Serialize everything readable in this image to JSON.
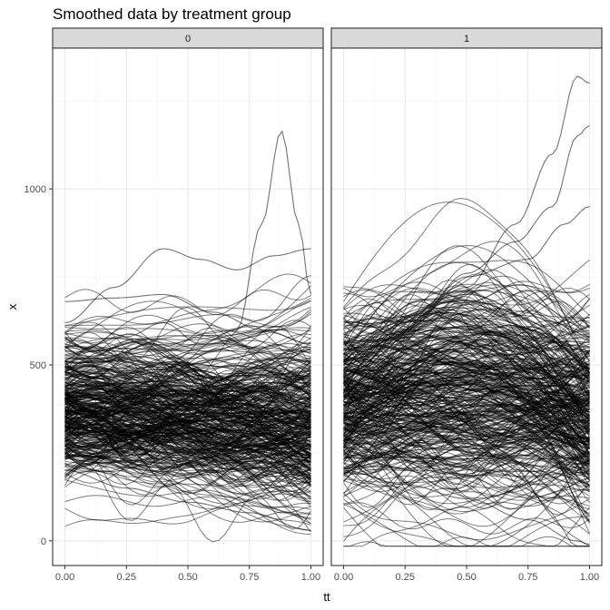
{
  "chart_data": {
    "type": "line",
    "title": "Smoothed data by treatment group",
    "xlabel": "tt",
    "ylabel": "x",
    "xlim": [
      -0.05,
      1.05
    ],
    "ylim": [
      -70,
      1400
    ],
    "x_ticks": [
      0,
      0.25,
      0.5,
      0.75,
      1
    ],
    "x_tick_labels": [
      "0.00",
      "0.25",
      "0.50",
      "0.75",
      "1.00"
    ],
    "y_ticks": [
      0,
      500,
      1000
    ],
    "y_tick_labels": [
      "0",
      "500",
      "1000"
    ],
    "grid": true,
    "facets": [
      {
        "label": "0",
        "curve_count": 400,
        "typical_range": [
          200,
          550
        ],
        "series": [
          {
            "x": [
              0,
              0.25,
              0.4,
              0.55,
              0.7,
              0.8,
              0.88,
              0.95,
              1.0
            ],
            "values": [
              530,
              580,
              620,
              560,
              600,
              900,
              1165,
              900,
              700
            ]
          },
          {
            "x": [
              0,
              0.2,
              0.4,
              0.55,
              0.7,
              0.85,
              1.0
            ],
            "values": [
              620,
              720,
              830,
              800,
              770,
              810,
              830
            ]
          },
          {
            "x": [
              0,
              0.2,
              0.4,
              0.6,
              0.8,
              1.0
            ],
            "values": [
              680,
              690,
              700,
              650,
              600,
              560
            ]
          },
          {
            "x": [
              0,
              0.25,
              0.5,
              0.75,
              1.0
            ],
            "values": [
              200,
              150,
              110,
              80,
              30
            ]
          }
        ]
      },
      {
        "label": "1",
        "curve_count": 400,
        "typical_range": [
          200,
          700
        ],
        "series": [
          {
            "x": [
              0,
              0.25,
              0.5,
              0.7,
              0.85,
              0.95,
              1.0
            ],
            "values": [
              500,
              620,
              720,
              900,
              1100,
              1320,
              1300
            ]
          },
          {
            "x": [
              0,
              0.3,
              0.5,
              0.7,
              0.85,
              0.95,
              1.0
            ],
            "values": [
              480,
              640,
              760,
              850,
              950,
              1150,
              1180
            ]
          },
          {
            "x": [
              0,
              0.25,
              0.5,
              0.75,
              0.9,
              1.0
            ],
            "values": [
              450,
              600,
              750,
              800,
              900,
              950
            ]
          },
          {
            "x": [
              0,
              0.25,
              0.5,
              0.75,
              0.95,
              1.0
            ],
            "values": [
              200,
              160,
              120,
              60,
              0,
              -10
            ]
          }
        ]
      }
    ]
  }
}
